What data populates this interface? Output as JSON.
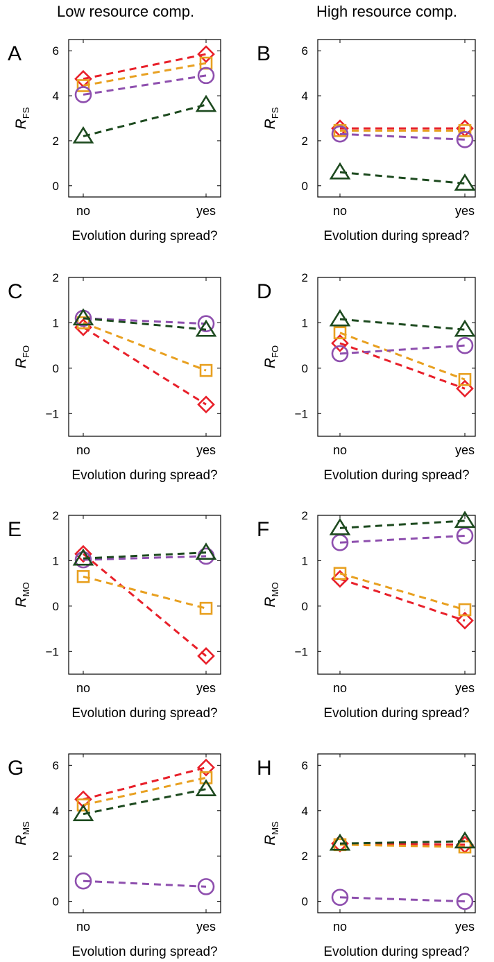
{
  "column_titles": {
    "left": "Low resource comp.",
    "right": "High resource comp."
  },
  "colors": {
    "red": "#e8202a",
    "orange": "#e8a020",
    "purple": "#8e4fae",
    "green": "#1d4a1f"
  },
  "chart_data": [
    {
      "panel": "A",
      "type": "line",
      "ylabel": "R",
      "ylabel_sub": "FS",
      "xlabel": "Evolution during spread?",
      "categories": [
        "no",
        "yes"
      ],
      "ylim": [
        -0.5,
        6.5
      ],
      "yticks": [
        0,
        2,
        4,
        6
      ],
      "ytick_labels": [
        "0",
        "2",
        "4",
        "6"
      ],
      "series": [
        {
          "marker": "diamond",
          "color": "#e8202a",
          "values": [
            4.75,
            5.85
          ]
        },
        {
          "marker": "square",
          "color": "#e8a020",
          "values": [
            4.45,
            5.45
          ]
        },
        {
          "marker": "circle",
          "color": "#8e4fae",
          "values": [
            4.05,
            4.9
          ]
        },
        {
          "marker": "triangle",
          "color": "#1d4a1f",
          "values": [
            2.2,
            3.6
          ]
        }
      ]
    },
    {
      "panel": "B",
      "type": "line",
      "ylabel": "R",
      "ylabel_sub": "FS",
      "xlabel": "Evolution during spread?",
      "categories": [
        "no",
        "yes"
      ],
      "ylim": [
        -0.5,
        6.5
      ],
      "yticks": [
        0,
        2,
        4,
        6
      ],
      "ytick_labels": [
        "0",
        "2",
        "4",
        "6"
      ],
      "series": [
        {
          "marker": "diamond",
          "color": "#e8202a",
          "values": [
            2.55,
            2.55
          ]
        },
        {
          "marker": "square",
          "color": "#e8a020",
          "values": [
            2.45,
            2.45
          ]
        },
        {
          "marker": "circle",
          "color": "#8e4fae",
          "values": [
            2.3,
            2.05
          ]
        },
        {
          "marker": "triangle",
          "color": "#1d4a1f",
          "values": [
            0.6,
            0.1
          ]
        }
      ]
    },
    {
      "panel": "C",
      "type": "line",
      "ylabel": "R",
      "ylabel_sub": "FO",
      "xlabel": "Evolution during spread?",
      "categories": [
        "no",
        "yes"
      ],
      "ylim": [
        -1.5,
        2
      ],
      "yticks": [
        -1,
        0,
        1,
        2
      ],
      "ytick_labels": [
        "−1",
        "0",
        "1",
        "2"
      ],
      "series": [
        {
          "marker": "diamond",
          "color": "#e8202a",
          "values": [
            0.9,
            -0.8
          ]
        },
        {
          "marker": "square",
          "color": "#e8a020",
          "values": [
            1.0,
            -0.05
          ]
        },
        {
          "marker": "circle",
          "color": "#8e4fae",
          "values": [
            1.1,
            0.98
          ]
        },
        {
          "marker": "triangle",
          "color": "#1d4a1f",
          "values": [
            1.1,
            0.85
          ]
        }
      ]
    },
    {
      "panel": "D",
      "type": "line",
      "ylabel": "R",
      "ylabel_sub": "FO",
      "xlabel": "Evolution during spread?",
      "categories": [
        "no",
        "yes"
      ],
      "ylim": [
        -1.5,
        2
      ],
      "yticks": [
        -1,
        0,
        1,
        2
      ],
      "ytick_labels": [
        "−1",
        "0",
        "1",
        "2"
      ],
      "series": [
        {
          "marker": "diamond",
          "color": "#e8202a",
          "values": [
            0.55,
            -0.45
          ]
        },
        {
          "marker": "square",
          "color": "#e8a020",
          "values": [
            0.78,
            -0.25
          ]
        },
        {
          "marker": "circle",
          "color": "#8e4fae",
          "values": [
            0.32,
            0.5
          ]
        },
        {
          "marker": "triangle",
          "color": "#1d4a1f",
          "values": [
            1.08,
            0.85
          ]
        }
      ]
    },
    {
      "panel": "E",
      "type": "line",
      "ylabel": "R",
      "ylabel_sub": "MO",
      "xlabel": "Evolution during spread?",
      "categories": [
        "no",
        "yes"
      ],
      "ylim": [
        -1.5,
        2
      ],
      "yticks": [
        -1,
        0,
        1,
        2
      ],
      "ytick_labels": [
        "−1",
        "0",
        "1",
        "2"
      ],
      "series": [
        {
          "marker": "diamond",
          "color": "#e8202a",
          "values": [
            1.15,
            -1.1
          ]
        },
        {
          "marker": "square",
          "color": "#e8a020",
          "values": [
            0.65,
            -0.05
          ]
        },
        {
          "marker": "circle",
          "color": "#8e4fae",
          "values": [
            1.02,
            1.1
          ]
        },
        {
          "marker": "triangle",
          "color": "#1d4a1f",
          "values": [
            1.05,
            1.18
          ]
        }
      ]
    },
    {
      "panel": "F",
      "type": "line",
      "ylabel": "R",
      "ylabel_sub": "MO",
      "xlabel": "Evolution during spread?",
      "categories": [
        "no",
        "yes"
      ],
      "ylim": [
        -1.5,
        2
      ],
      "yticks": [
        -1,
        0,
        1,
        2
      ],
      "ytick_labels": [
        "−1",
        "0",
        "1",
        "2"
      ],
      "series": [
        {
          "marker": "diamond",
          "color": "#e8202a",
          "values": [
            0.6,
            -0.32
          ]
        },
        {
          "marker": "square",
          "color": "#e8a020",
          "values": [
            0.72,
            -0.08
          ]
        },
        {
          "marker": "circle",
          "color": "#8e4fae",
          "values": [
            1.4,
            1.55
          ]
        },
        {
          "marker": "triangle",
          "color": "#1d4a1f",
          "values": [
            1.72,
            1.88
          ]
        }
      ]
    },
    {
      "panel": "G",
      "type": "line",
      "ylabel": "R",
      "ylabel_sub": "MS",
      "xlabel": "Evolution during spread?",
      "categories": [
        "no",
        "yes"
      ],
      "ylim": [
        -0.5,
        6.5
      ],
      "yticks": [
        0,
        2,
        4,
        6
      ],
      "ytick_labels": [
        "0",
        "2",
        "4",
        "6"
      ],
      "series": [
        {
          "marker": "diamond",
          "color": "#e8202a",
          "values": [
            4.5,
            5.9
          ]
        },
        {
          "marker": "square",
          "color": "#e8a020",
          "values": [
            4.25,
            5.45
          ]
        },
        {
          "marker": "triangle",
          "color": "#1d4a1f",
          "values": [
            3.85,
            4.95
          ]
        },
        {
          "marker": "circle",
          "color": "#8e4fae",
          "values": [
            0.9,
            0.65
          ]
        }
      ]
    },
    {
      "panel": "H",
      "type": "line",
      "ylabel": "R",
      "ylabel_sub": "MS",
      "xlabel": "Evolution during spread?",
      "categories": [
        "no",
        "yes"
      ],
      "ylim": [
        -0.5,
        6.5
      ],
      "yticks": [
        0,
        2,
        4,
        6
      ],
      "ytick_labels": [
        "0",
        "2",
        "4",
        "6"
      ],
      "series": [
        {
          "marker": "diamond",
          "color": "#e8202a",
          "values": [
            2.55,
            2.5
          ]
        },
        {
          "marker": "square",
          "color": "#e8a020",
          "values": [
            2.5,
            2.4
          ]
        },
        {
          "marker": "triangle",
          "color": "#1d4a1f",
          "values": [
            2.55,
            2.65
          ]
        },
        {
          "marker": "circle",
          "color": "#8e4fae",
          "values": [
            0.18,
            0.0
          ]
        }
      ]
    }
  ]
}
